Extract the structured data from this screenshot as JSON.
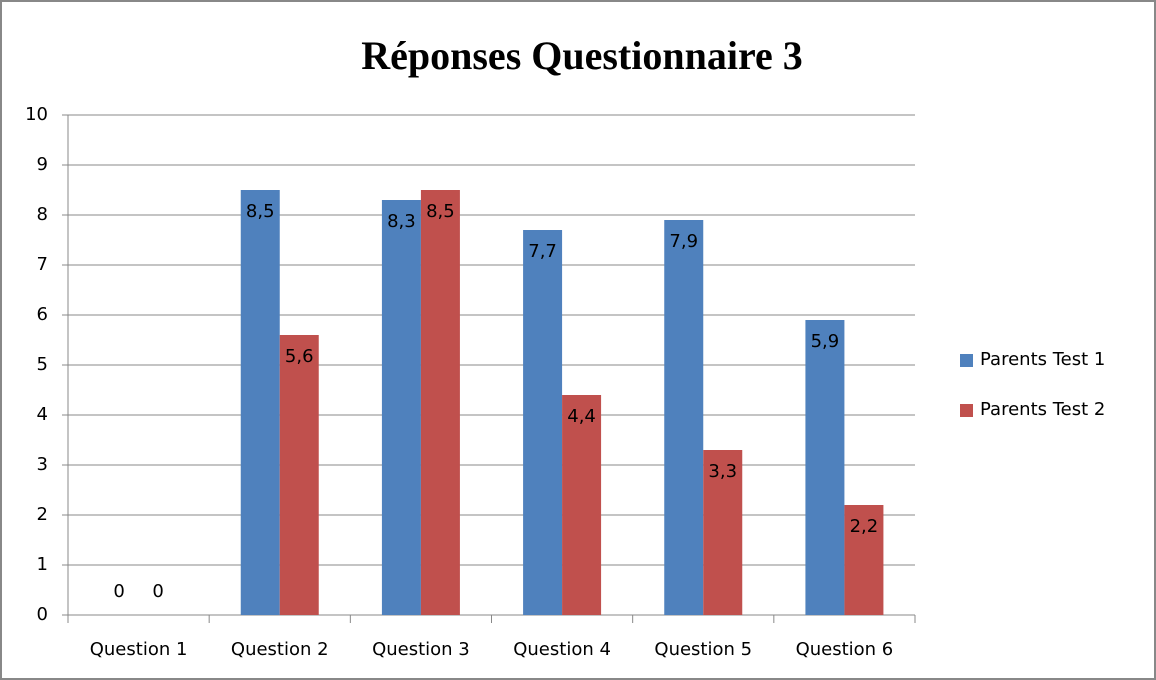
{
  "chart_data": {
    "type": "bar",
    "title": "Réponses Questionnaire 3",
    "categories": [
      "Question 1",
      "Question 2",
      "Question 3",
      "Question 4",
      "Question 5",
      "Question 6"
    ],
    "series": [
      {
        "name": "Parents Test 1",
        "color": "#4f81bd",
        "values": [
          0,
          8.5,
          8.3,
          7.7,
          7.9,
          5.9
        ],
        "value_labels": [
          "0",
          "8,5",
          "8,3",
          "7,7",
          "7,9",
          "5,9"
        ]
      },
      {
        "name": "Parents Test 2",
        "color": "#c0504d",
        "values": [
          0,
          5.6,
          8.5,
          4.4,
          3.3,
          2.2
        ],
        "value_labels": [
          "0",
          "5,6",
          "8,5",
          "4,4",
          "3,3",
          "2,2"
        ]
      }
    ],
    "ylim": [
      0,
      10
    ],
    "yticks": [
      0,
      1,
      2,
      3,
      4,
      5,
      6,
      7,
      8,
      9,
      10
    ],
    "grid": true,
    "legend": "right"
  }
}
